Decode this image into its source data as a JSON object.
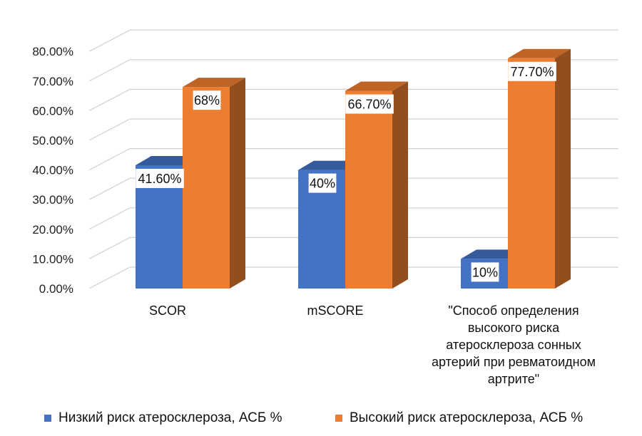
{
  "chart_data": {
    "type": "bar",
    "three_d": true,
    "categories": [
      [
        "SCOR"
      ],
      [
        "mSCORE"
      ],
      [
        "\"Способ определения",
        "высокого риска",
        "атеросклероза сонных",
        "артерий при ревматоидном",
        "артрите\""
      ]
    ],
    "series": [
      {
        "name": "Низкий риск атеросклероза, АСБ %",
        "color": "#4472c4",
        "values": [
          41.6,
          40,
          10
        ],
        "labels": [
          "41.60%",
          "40%",
          "10%"
        ]
      },
      {
        "name": "Высокий риск атеросклероза, АСБ %",
        "color": "#ed7d31",
        "values": [
          68,
          66.7,
          77.7
        ],
        "labels": [
          "68%",
          "66.70%",
          "77.70%"
        ]
      }
    ],
    "y_ticks": [
      "0.00%",
      "10.00%",
      "20.00%",
      "30.00%",
      "40.00%",
      "50.00%",
      "60.00%",
      "70.00%",
      "80.00%"
    ],
    "ylim": [
      0,
      80
    ],
    "grid": true,
    "legend_position": "bottom"
  }
}
